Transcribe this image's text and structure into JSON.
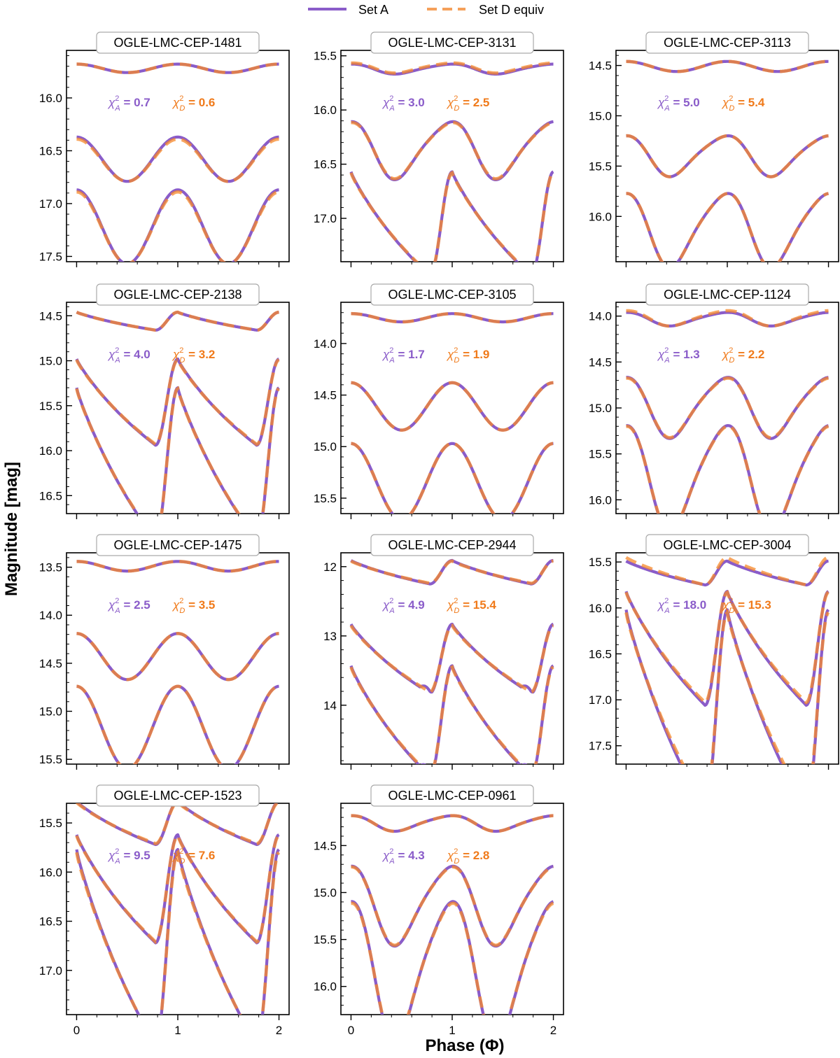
{
  "figure": {
    "xlabel": "Phase (Φ)",
    "ylabel": "Magnitude [mag]",
    "legend": {
      "placement": "top-center",
      "entries": [
        {
          "name": "Set A",
          "color": "#8a5cc9",
          "style": "solid"
        },
        {
          "name": "Set D equiv",
          "color": "#f5882a",
          "style": "dashed"
        }
      ]
    },
    "colors": {
      "set_a": "#8a5cc9",
      "set_d": "#f5882a",
      "chi_a_text": "#8a5cc9",
      "chi_d_text": "#f07a1a"
    }
  },
  "chart_data": [
    {
      "type": "line",
      "title": "OGLE-LMC-CEP-1481",
      "ylim": [
        17.55,
        15.55
      ],
      "yticks": [
        "16.0",
        "16.5",
        "17.0",
        "17.5"
      ],
      "xticks": [
        "0",
        "1",
        "2"
      ],
      "xlim": [
        -0.1,
        2.1
      ],
      "chi_a": "0.7",
      "chi_d": "0.6",
      "series": [
        {
          "name": "Set A",
          "bands": [
            {
              "mean": 15.72,
              "amp": 0.04,
              "shape": "sin"
            },
            {
              "mean": 16.58,
              "amp": 0.21,
              "shape": "sin"
            },
            {
              "mean": 17.22,
              "amp": 0.35,
              "shape": "sin"
            }
          ]
        },
        {
          "name": "Set D equiv",
          "bands": [
            {
              "mean": 15.72,
              "amp": 0.04,
              "shape": "sin"
            },
            {
              "mean": 16.59,
              "amp": 0.2,
              "shape": "sin"
            },
            {
              "mean": 17.23,
              "amp": 0.34,
              "shape": "sin"
            }
          ]
        }
      ]
    },
    {
      "type": "line",
      "title": "OGLE-LMC-CEP-3131",
      "ylim": [
        17.4,
        15.45
      ],
      "yticks": [
        "15.5",
        "16.0",
        "16.5",
        "17.0"
      ],
      "xticks": [
        "0",
        "1",
        "2"
      ],
      "xlim": [
        -0.1,
        2.1
      ],
      "chi_a": "3.0",
      "chi_d": "2.5",
      "series": [
        {
          "name": "Set A",
          "bands": [
            {
              "mean": 15.62,
              "amp": 0.05,
              "shape": "bump"
            },
            {
              "mean": 16.36,
              "amp": 0.29,
              "shape": "bump"
            },
            {
              "mean": 17.05,
              "amp": 0.48,
              "shape": "ceph"
            }
          ]
        },
        {
          "name": "Set D equiv",
          "bands": [
            {
              "mean": 15.61,
              "amp": 0.05,
              "shape": "bump"
            },
            {
              "mean": 16.36,
              "amp": 0.28,
              "shape": "bump"
            },
            {
              "mean": 17.05,
              "amp": 0.47,
              "shape": "ceph"
            }
          ]
        }
      ]
    },
    {
      "type": "line",
      "title": "OGLE-LMC-CEP-3113",
      "ylim": [
        16.45,
        14.35
      ],
      "yticks": [
        "14.5",
        "15.0",
        "15.5",
        "16.0"
      ],
      "xticks": [
        "0",
        "1",
        "2"
      ],
      "xlim": [
        -0.1,
        2.1
      ],
      "chi_a": "5.0",
      "chi_d": "5.4",
      "series": [
        {
          "name": "Set A",
          "bands": [
            {
              "mean": 14.51,
              "amp": 0.05,
              "shape": "sin"
            },
            {
              "mean": 15.39,
              "amp": 0.22,
              "shape": "bump"
            },
            {
              "mean": 16.12,
              "amp": 0.4,
              "shape": "bump"
            }
          ]
        },
        {
          "name": "Set D equiv",
          "bands": [
            {
              "mean": 14.51,
              "amp": 0.05,
              "shape": "sin"
            },
            {
              "mean": 15.39,
              "amp": 0.22,
              "shape": "bump"
            },
            {
              "mean": 16.12,
              "amp": 0.4,
              "shape": "bump"
            }
          ]
        }
      ]
    },
    {
      "type": "line",
      "title": "OGLE-LMC-CEP-2138",
      "ylim": [
        16.7,
        14.35
      ],
      "yticks": [
        "14.5",
        "15.0",
        "15.5",
        "16.0",
        "16.5"
      ],
      "xticks": [
        "0",
        "1",
        "2"
      ],
      "xlim": [
        -0.1,
        2.1
      ],
      "chi_a": "4.0",
      "chi_d": "3.2",
      "series": [
        {
          "name": "Set A",
          "bands": [
            {
              "mean": 14.56,
              "amp": 0.1,
              "shape": "ceph"
            },
            {
              "mean": 15.46,
              "amp": 0.48,
              "shape": "ceph"
            },
            {
              "mean": 16.15,
              "amp": 0.85,
              "shape": "ceph"
            }
          ]
        },
        {
          "name": "Set D equiv",
          "bands": [
            {
              "mean": 14.56,
              "amp": 0.1,
              "shape": "ceph"
            },
            {
              "mean": 15.46,
              "amp": 0.47,
              "shape": "ceph"
            },
            {
              "mean": 16.15,
              "amp": 0.84,
              "shape": "ceph"
            }
          ]
        }
      ]
    },
    {
      "type": "line",
      "title": "OGLE-LMC-CEP-3105",
      "ylim": [
        15.65,
        13.6
      ],
      "yticks": [
        "14.0",
        "14.5",
        "15.0",
        "15.5"
      ],
      "xticks": [
        "0",
        "1",
        "2"
      ],
      "xlim": [
        -0.1,
        2.1
      ],
      "chi_a": "1.7",
      "chi_d": "1.9",
      "series": [
        {
          "name": "Set A",
          "bands": [
            {
              "mean": 13.75,
              "amp": 0.04,
              "shape": "sin"
            },
            {
              "mean": 14.61,
              "amp": 0.23,
              "shape": "sin"
            },
            {
              "mean": 15.34,
              "amp": 0.37,
              "shape": "sin"
            }
          ]
        },
        {
          "name": "Set D equiv",
          "bands": [
            {
              "mean": 13.75,
              "amp": 0.04,
              "shape": "sin"
            },
            {
              "mean": 14.61,
              "amp": 0.23,
              "shape": "sin"
            },
            {
              "mean": 15.34,
              "amp": 0.37,
              "shape": "sin"
            }
          ]
        }
      ]
    },
    {
      "type": "line",
      "title": "OGLE-LMC-CEP-1124",
      "ylim": [
        16.15,
        13.85
      ],
      "yticks": [
        "14.0",
        "14.5",
        "15.0",
        "15.5",
        "16.0"
      ],
      "xticks": [
        "0",
        "1",
        "2"
      ],
      "xlim": [
        -0.1,
        2.1
      ],
      "chi_a": "1.3",
      "chi_d": "2.2",
      "series": [
        {
          "name": "Set A",
          "bands": [
            {
              "mean": 14.03,
              "amp": 0.08,
              "shape": "bump"
            },
            {
              "mean": 14.98,
              "amp": 0.36,
              "shape": "bump"
            },
            {
              "mean": 15.74,
              "amp": 0.63,
              "shape": "bump"
            }
          ]
        },
        {
          "name": "Set D equiv",
          "bands": [
            {
              "mean": 14.02,
              "amp": 0.09,
              "shape": "bump"
            },
            {
              "mean": 14.98,
              "amp": 0.35,
              "shape": "bump"
            },
            {
              "mean": 15.74,
              "amp": 0.62,
              "shape": "bump"
            }
          ]
        }
      ]
    },
    {
      "type": "line",
      "title": "OGLE-LMC-CEP-1475",
      "ylim": [
        15.55,
        13.35
      ],
      "yticks": [
        "13.5",
        "14.0",
        "14.5",
        "15.0",
        "15.5"
      ],
      "xticks": [
        "0",
        "1",
        "2"
      ],
      "xlim": [
        -0.1,
        2.1
      ],
      "chi_a": "2.5",
      "chi_d": "3.5",
      "series": [
        {
          "name": "Set A",
          "bands": [
            {
              "mean": 13.49,
              "amp": 0.05,
              "shape": "sin"
            },
            {
              "mean": 14.43,
              "amp": 0.24,
              "shape": "sin"
            },
            {
              "mean": 15.17,
              "amp": 0.43,
              "shape": "sin"
            }
          ]
        },
        {
          "name": "Set D equiv",
          "bands": [
            {
              "mean": 13.49,
              "amp": 0.05,
              "shape": "sin"
            },
            {
              "mean": 14.43,
              "amp": 0.24,
              "shape": "sin"
            },
            {
              "mean": 15.17,
              "amp": 0.43,
              "shape": "sin"
            }
          ]
        }
      ]
    },
    {
      "type": "line",
      "title": "OGLE-LMC-CEP-2944",
      "ylim": [
        14.85,
        11.8
      ],
      "yticks": [
        "12",
        "13",
        "14"
      ],
      "xticks": [
        "0",
        "1",
        "2"
      ],
      "xlim": [
        -0.1,
        2.1
      ],
      "chi_a": "4.9",
      "chi_d": "15.4",
      "series": [
        {
          "name": "Set A",
          "bands": [
            {
              "mean": 12.08,
              "amp": 0.17,
              "shape": "ceph"
            },
            {
              "mean": 13.33,
              "amp": 0.5,
              "shape": "ceph2"
            },
            {
              "mean": 14.23,
              "amp": 0.8,
              "shape": "ceph2"
            }
          ]
        },
        {
          "name": "Set D equiv",
          "bands": [
            {
              "mean": 12.08,
              "amp": 0.16,
              "shape": "ceph"
            },
            {
              "mean": 13.33,
              "amp": 0.48,
              "shape": "ceph"
            },
            {
              "mean": 14.23,
              "amp": 0.78,
              "shape": "ceph"
            }
          ]
        }
      ]
    },
    {
      "type": "line",
      "title": "OGLE-LMC-CEP-3004",
      "ylim": [
        17.7,
        15.4
      ],
      "yticks": [
        "15.5",
        "16.0",
        "16.5",
        "17.0",
        "17.5"
      ],
      "xticks": [
        "0",
        "1",
        "2"
      ],
      "xlim": [
        -0.1,
        2.1
      ],
      "chi_a": "18.0",
      "chi_d": "15.3",
      "series": [
        {
          "name": "Set A",
          "bands": [
            {
              "mean": 15.62,
              "amp": 0.13,
              "shape": "ceph"
            },
            {
              "mean": 16.44,
              "amp": 0.62,
              "shape": "ceph"
            },
            {
              "mean": 17.12,
              "amp": 1.1,
              "shape": "ceph"
            }
          ]
        },
        {
          "name": "Set D equiv",
          "bands": [
            {
              "mean": 15.6,
              "amp": 0.15,
              "shape": "ceph"
            },
            {
              "mean": 16.43,
              "amp": 0.6,
              "shape": "ceph"
            },
            {
              "mean": 17.1,
              "amp": 1.05,
              "shape": "ceph"
            }
          ]
        }
      ]
    },
    {
      "type": "line",
      "title": "OGLE-LMC-CEP-1523",
      "ylim": [
        17.45,
        15.3
      ],
      "yticks": [
        "15.5",
        "16.0",
        "16.5",
        "17.0"
      ],
      "xticks": [
        "0",
        "1",
        "2"
      ],
      "xlim": [
        -0.1,
        2.1
      ],
      "chi_a": "9.5",
      "chi_d": "7.6",
      "series": [
        {
          "name": "Set A",
          "bands": [
            {
              "mean": 15.5,
              "amp": 0.22,
              "shape": "ceph"
            },
            {
              "mean": 16.17,
              "amp": 0.55,
              "shape": "ceph"
            },
            {
              "mean": 16.77,
              "amp": 1.0,
              "shape": "ceph"
            }
          ]
        },
        {
          "name": "Set D equiv",
          "bands": [
            {
              "mean": 15.5,
              "amp": 0.21,
              "shape": "ceph"
            },
            {
              "mean": 16.17,
              "amp": 0.54,
              "shape": "ceph"
            },
            {
              "mean": 16.78,
              "amp": 0.98,
              "shape": "ceph"
            }
          ]
        }
      ]
    },
    {
      "type": "line",
      "title": "OGLE-LMC-CEP-0961",
      "ylim": [
        16.3,
        14.05
      ],
      "yticks": [
        "14.5",
        "15.0",
        "15.5",
        "16.0"
      ],
      "xticks": [
        "0",
        "1",
        "2"
      ],
      "xlim": [
        -0.1,
        2.1
      ],
      "chi_a": "4.3",
      "chi_d": "2.8",
      "series": [
        {
          "name": "Set A",
          "bands": [
            {
              "mean": 14.26,
              "amp": 0.09,
              "shape": "bump"
            },
            {
              "mean": 15.12,
              "amp": 0.46,
              "shape": "bump"
            },
            {
              "mean": 15.81,
              "amp": 0.82,
              "shape": "bump"
            }
          ]
        },
        {
          "name": "Set D equiv",
          "bands": [
            {
              "mean": 14.26,
              "amp": 0.09,
              "shape": "bump"
            },
            {
              "mean": 15.12,
              "amp": 0.45,
              "shape": "bump"
            },
            {
              "mean": 15.81,
              "amp": 0.8,
              "shape": "bump"
            }
          ]
        }
      ]
    }
  ]
}
